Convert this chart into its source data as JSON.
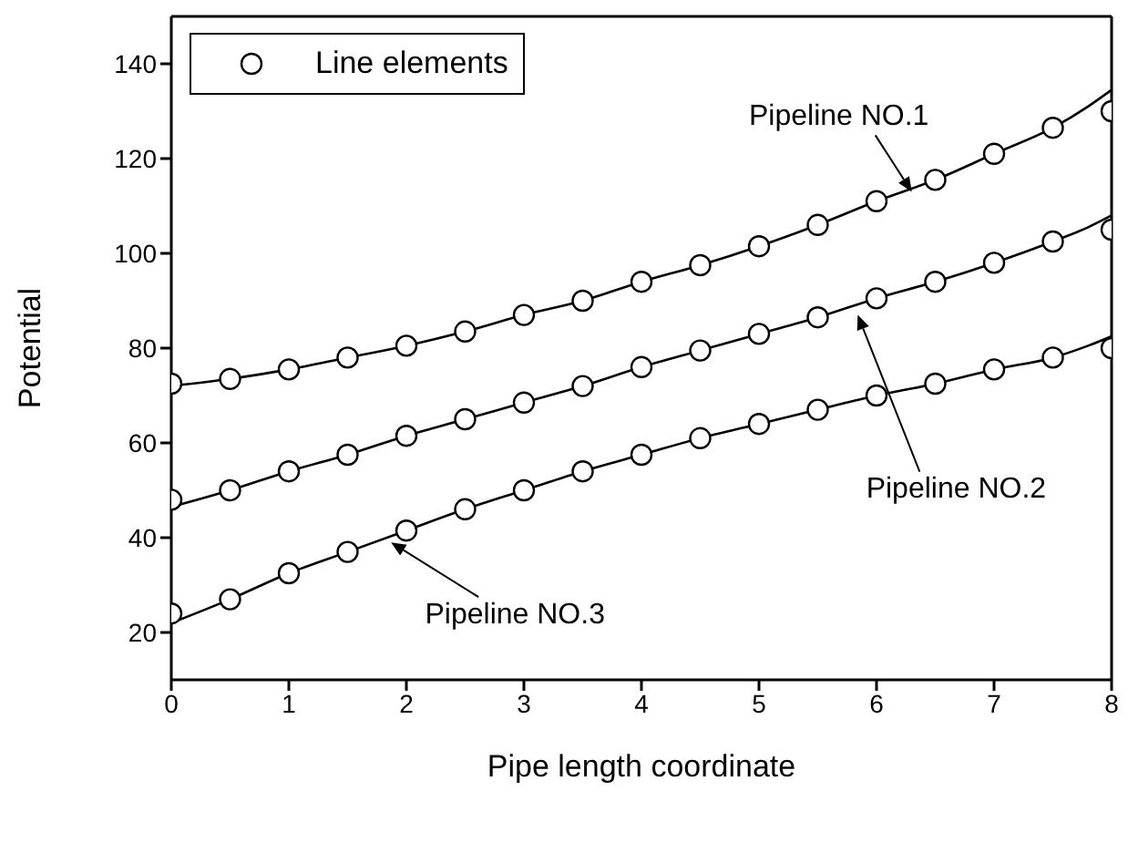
{
  "chart_data": {
    "type": "line",
    "xlabel": "Pipe length coordinate",
    "ylabel": "Potential",
    "xlim": [
      0,
      8
    ],
    "xticks": [
      0,
      1,
      2,
      3,
      4,
      5,
      6,
      7,
      8
    ],
    "ylim": [
      10,
      150
    ],
    "yticks": [
      20,
      40,
      60,
      80,
      100,
      120,
      140
    ],
    "legend": "top left",
    "series": [
      {
        "color": "#000000",
        "marker": "none",
        "x": [
          0,
          0.5,
          1,
          1.5,
          2,
          2.5,
          3,
          3.5,
          4,
          4.5,
          5,
          5.5,
          6,
          6.5,
          7,
          7.5,
          7.8,
          8
        ],
        "values": [
          72,
          73.5,
          75.5,
          78,
          80.5,
          83.5,
          87,
          90,
          94,
          97.5,
          101.5,
          106,
          111,
          115.5,
          121,
          126.5,
          131,
          134.5
        ]
      },
      {
        "color": "#000000",
        "marker": "none",
        "x": [
          0,
          0.5,
          1,
          1.5,
          2,
          2.5,
          3,
          3.5,
          4,
          4.5,
          5,
          5.5,
          6,
          6.5,
          7,
          7.5,
          7.8,
          8
        ],
        "values": [
          46.5,
          50,
          54,
          57.5,
          61.5,
          65,
          68.5,
          72,
          76,
          79.5,
          83,
          86.5,
          90.5,
          94,
          98,
          102.5,
          105.5,
          108
        ]
      },
      {
        "color": "#000000",
        "marker": "none",
        "x": [
          0,
          0.5,
          1,
          1.5,
          2,
          2.5,
          3,
          3.5,
          4,
          4.5,
          5,
          5.5,
          6,
          6.5,
          7,
          7.5,
          7.8,
          8
        ],
        "values": [
          22,
          27,
          32.5,
          37,
          41.5,
          46,
          50,
          54,
          57.5,
          61,
          64,
          67,
          70,
          72.5,
          75.5,
          78,
          80.5,
          82.5
        ]
      },
      {
        "type": "scatter",
        "name": "Line elements",
        "color": "#000000",
        "marker": "circle",
        "x": [
          0,
          0.5,
          1,
          1.5,
          2,
          2.5,
          3,
          3.5,
          4,
          4.5,
          5,
          5.5,
          6,
          6.5,
          7,
          7.5,
          8
        ],
        "values": [
          72.5,
          73.5,
          75.5,
          78,
          80.5,
          83.5,
          87,
          90,
          94,
          97.5,
          101.5,
          106,
          111,
          115.5,
          121,
          126.5,
          130
        ]
      },
      {
        "type": "scatter",
        "color": "#000000",
        "marker": "circle",
        "x": [
          0,
          0.5,
          1,
          1.5,
          2,
          2.5,
          3,
          3.5,
          4,
          4.5,
          5,
          5.5,
          6,
          6.5,
          7,
          7.5,
          8
        ],
        "values": [
          48,
          50,
          54,
          57.5,
          61.5,
          65,
          68.5,
          72,
          76,
          79.5,
          83,
          86.5,
          90.5,
          94,
          98,
          102.5,
          105
        ]
      },
      {
        "type": "scatter",
        "color": "#000000",
        "marker": "circle",
        "x": [
          0,
          0.5,
          1,
          1.5,
          2,
          2.5,
          3,
          3.5,
          4,
          4.5,
          5,
          5.5,
          6,
          6.5,
          7,
          7.5,
          8
        ],
        "values": [
          24,
          27,
          32.5,
          37,
          41.5,
          46,
          50,
          54,
          57.5,
          61,
          64,
          67,
          70,
          72.5,
          75.5,
          78,
          80
        ]
      }
    ],
    "annotations": [
      {
        "text": "Pipeline NO.1",
        "x": 6.3,
        "y": 113
      },
      {
        "text": "Pipeline NO.2",
        "x": 5.84,
        "y": 87
      },
      {
        "text": "Pipeline NO.3",
        "x": 1.87,
        "y": 39
      }
    ]
  }
}
